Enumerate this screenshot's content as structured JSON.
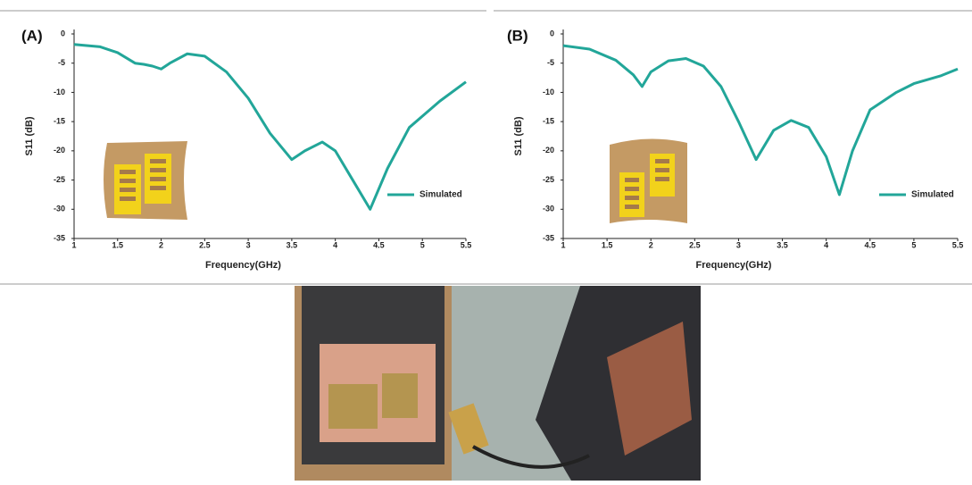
{
  "chart_data": [
    {
      "type": "line",
      "panel": "(A)",
      "x_label": "Frequency(GHz)",
      "y_label": "S11 (dB)",
      "xlim": [
        1,
        5.5
      ],
      "xticks": [
        1,
        1.5,
        2,
        2.5,
        3,
        3.5,
        4,
        4.5,
        5,
        5.5
      ],
      "ylim": [
        -35,
        0
      ],
      "yticks": [
        0,
        -5,
        -10,
        -15,
        -20,
        -25,
        -30,
        -35
      ],
      "legend": "lower-right",
      "x": [
        1,
        1.3,
        1.5,
        1.7,
        1.8,
        1.9,
        2.0,
        2.1,
        2.3,
        2.5,
        2.75,
        3.0,
        3.25,
        3.5,
        3.65,
        3.85,
        4.0,
        4.2,
        4.4,
        4.6,
        4.85,
        5.2,
        5.5
      ],
      "series": [
        {
          "name": "Simulated",
          "color": "#22a699",
          "values": [
            -1.8,
            -2.2,
            -3.2,
            -5,
            -5.2,
            -5.5,
            -6,
            -5,
            -3.4,
            -3.8,
            -6.5,
            -11,
            -17,
            -21.5,
            -20,
            -18.5,
            -20,
            -25,
            -30,
            -23,
            -16,
            -11.5,
            -8.2
          ]
        }
      ]
    },
    {
      "type": "line",
      "panel": "(B)",
      "x_label": "Frequency(GHz)",
      "y_label": "S11 (dB)",
      "xlim": [
        1,
        5.5
      ],
      "xticks": [
        1,
        1.5,
        2,
        2.5,
        3,
        3.5,
        4,
        4.5,
        5,
        5.5
      ],
      "ylim": [
        -35,
        0
      ],
      "yticks": [
        0,
        -5,
        -10,
        -15,
        -20,
        -25,
        -30,
        -35
      ],
      "legend": "lower-right",
      "x": [
        1,
        1.3,
        1.6,
        1.8,
        1.9,
        2.0,
        2.2,
        2.4,
        2.6,
        2.8,
        3.0,
        3.2,
        3.4,
        3.6,
        3.8,
        4.0,
        4.15,
        4.3,
        4.5,
        4.8,
        5.0,
        5.3,
        5.5
      ],
      "series": [
        {
          "name": "Simulated",
          "color": "#22a699",
          "values": [
            -2,
            -2.6,
            -4.5,
            -7,
            -9,
            -6.5,
            -4.6,
            -4.2,
            -5.5,
            -9,
            -15,
            -21.5,
            -16.5,
            -14.8,
            -16,
            -21,
            -27.5,
            -20,
            -13,
            -10,
            -8.5,
            -7.2,
            -6
          ]
        }
      ]
    }
  ]
}
